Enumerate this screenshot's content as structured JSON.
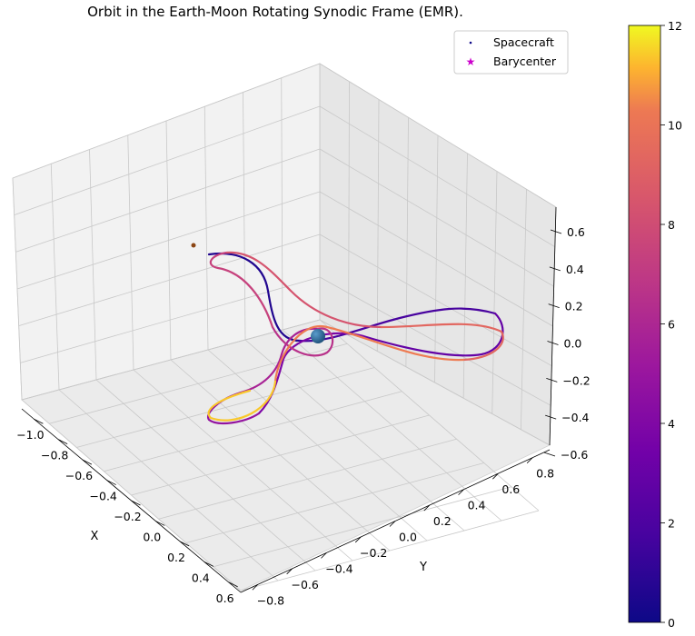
{
  "chart_data": {
    "type": "scatter",
    "projection": "3d",
    "title": "Orbit in the Earth-Moon Rotating Synodic Frame (EMR).",
    "xlabel": "X",
    "ylabel": "Y",
    "zlabel": "",
    "x_ticks": [
      "−1.0",
      "−0.8",
      "−0.6",
      "−0.4",
      "−0.2",
      "0.0",
      "0.2",
      "0.4",
      "0.6"
    ],
    "y_ticks": [
      "−0.8",
      "−0.6",
      "−0.4",
      "−0.2",
      "0.0",
      "0.2",
      "0.4",
      "0.6",
      "0.8"
    ],
    "z_ticks": [
      "−0.6",
      "−0.4",
      "−0.2",
      "0.0",
      "0.2",
      "0.4",
      "0.6"
    ],
    "xlim": [
      -1.0,
      0.6
    ],
    "ylim": [
      -0.8,
      0.8
    ],
    "zlim": [
      -0.6,
      0.6
    ],
    "grid": true,
    "legend_position": "top-right",
    "legend": [
      {
        "label": "Spacecraft",
        "marker": "dot"
      },
      {
        "label": "Barycenter",
        "marker": "star",
        "color": "#cc00cc"
      }
    ],
    "colorbar": {
      "colormap": "plasma",
      "min": 0,
      "max": 12,
      "ticks": [
        "0",
        "2",
        "4",
        "6",
        "8",
        "10",
        "12"
      ]
    },
    "bodies": [
      {
        "name": "Earth",
        "color": "#2b6fa0"
      },
      {
        "name": "Moon",
        "color": "#8b4513"
      }
    ]
  }
}
